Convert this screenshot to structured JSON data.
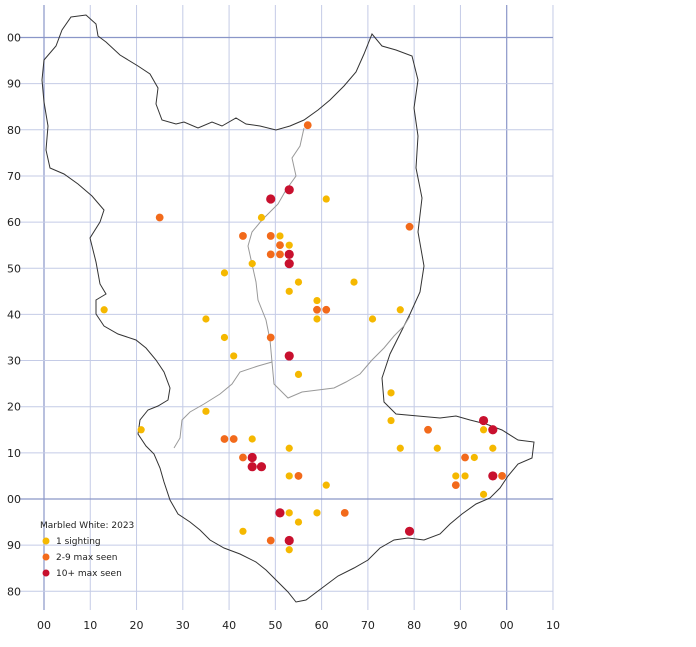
{
  "legend": {
    "title": "Marbled White:  2023",
    "items": [
      {
        "label": "1 sighting",
        "category": "single",
        "color": "#f5b800"
      },
      {
        "label": "2-9 max seen",
        "category": "few",
        "color": "#f26a1b"
      },
      {
        "label": "10+ max seen",
        "category": "many",
        "color": "#c8102e"
      }
    ]
  },
  "grid": {
    "x_labels": [
      "00",
      "10",
      "20",
      "30",
      "40",
      "50",
      "60",
      "70",
      "80",
      "90",
      "00",
      "10"
    ],
    "y_labels": [
      "00",
      "90",
      "80",
      "70",
      "60",
      "50",
      "40",
      "30",
      "20",
      "10",
      "00",
      "90",
      "80"
    ]
  },
  "chart_data": {
    "type": "scatter",
    "x_grid_values": [
      0,
      10,
      20,
      30,
      40,
      50,
      60,
      70,
      80,
      90,
      100,
      110
    ],
    "y_grid_values": [
      100,
      90,
      80,
      70,
      60,
      50,
      40,
      30,
      20,
      10,
      0,
      -10,
      -20
    ],
    "points": [
      {
        "x": 57,
        "y": 81,
        "cat": "few"
      },
      {
        "x": 53,
        "y": 67,
        "cat": "many"
      },
      {
        "x": 49,
        "y": 65,
        "cat": "many"
      },
      {
        "x": 61,
        "y": 65,
        "cat": "single"
      },
      {
        "x": 25,
        "y": 61,
        "cat": "few"
      },
      {
        "x": 47,
        "y": 61,
        "cat": "single"
      },
      {
        "x": 79,
        "y": 59,
        "cat": "few"
      },
      {
        "x": 43,
        "y": 57,
        "cat": "few"
      },
      {
        "x": 49,
        "y": 57,
        "cat": "few"
      },
      {
        "x": 51,
        "y": 57,
        "cat": "single"
      },
      {
        "x": 51,
        "y": 55,
        "cat": "few"
      },
      {
        "x": 53,
        "y": 55,
        "cat": "single"
      },
      {
        "x": 49,
        "y": 53,
        "cat": "few"
      },
      {
        "x": 51,
        "y": 53,
        "cat": "few"
      },
      {
        "x": 53,
        "y": 53,
        "cat": "many"
      },
      {
        "x": 53,
        "y": 51,
        "cat": "many"
      },
      {
        "x": 45,
        "y": 51,
        "cat": "single"
      },
      {
        "x": 39,
        "y": 49,
        "cat": "single"
      },
      {
        "x": 55,
        "y": 47,
        "cat": "single"
      },
      {
        "x": 67,
        "y": 47,
        "cat": "single"
      },
      {
        "x": 53,
        "y": 45,
        "cat": "single"
      },
      {
        "x": 59,
        "y": 43,
        "cat": "single"
      },
      {
        "x": 13,
        "y": 41,
        "cat": "single"
      },
      {
        "x": 59,
        "y": 41,
        "cat": "few"
      },
      {
        "x": 61,
        "y": 41,
        "cat": "few"
      },
      {
        "x": 77,
        "y": 41,
        "cat": "single"
      },
      {
        "x": 35,
        "y": 39,
        "cat": "single"
      },
      {
        "x": 59,
        "y": 39,
        "cat": "single"
      },
      {
        "x": 71,
        "y": 39,
        "cat": "single"
      },
      {
        "x": 39,
        "y": 35,
        "cat": "single"
      },
      {
        "x": 49,
        "y": 35,
        "cat": "few"
      },
      {
        "x": 41,
        "y": 31,
        "cat": "single"
      },
      {
        "x": 53,
        "y": 31,
        "cat": "many"
      },
      {
        "x": 55,
        "y": 27,
        "cat": "single"
      },
      {
        "x": 75,
        "y": 23,
        "cat": "single"
      },
      {
        "x": 35,
        "y": 19,
        "cat": "single"
      },
      {
        "x": 75,
        "y": 17,
        "cat": "single"
      },
      {
        "x": 95,
        "y": 17,
        "cat": "many"
      },
      {
        "x": 21,
        "y": 15,
        "cat": "single"
      },
      {
        "x": 83,
        "y": 15,
        "cat": "few"
      },
      {
        "x": 95,
        "y": 15,
        "cat": "single"
      },
      {
        "x": 97,
        "y": 15,
        "cat": "many"
      },
      {
        "x": 39,
        "y": 13,
        "cat": "few"
      },
      {
        "x": 41,
        "y": 13,
        "cat": "few"
      },
      {
        "x": 45,
        "y": 13,
        "cat": "single"
      },
      {
        "x": 53,
        "y": 11,
        "cat": "single"
      },
      {
        "x": 77,
        "y": 11,
        "cat": "single"
      },
      {
        "x": 85,
        "y": 11,
        "cat": "single"
      },
      {
        "x": 97,
        "y": 11,
        "cat": "single"
      },
      {
        "x": 43,
        "y": 9,
        "cat": "few"
      },
      {
        "x": 45,
        "y": 9,
        "cat": "many"
      },
      {
        "x": 91,
        "y": 9,
        "cat": "few"
      },
      {
        "x": 93,
        "y": 9,
        "cat": "single"
      },
      {
        "x": 45,
        "y": 7,
        "cat": "many"
      },
      {
        "x": 47,
        "y": 7,
        "cat": "many"
      },
      {
        "x": 53,
        "y": 5,
        "cat": "single"
      },
      {
        "x": 55,
        "y": 5,
        "cat": "few"
      },
      {
        "x": 89,
        "y": 5,
        "cat": "single"
      },
      {
        "x": 91,
        "y": 5,
        "cat": "single"
      },
      {
        "x": 97,
        "y": 5,
        "cat": "many"
      },
      {
        "x": 99,
        "y": 5,
        "cat": "few"
      },
      {
        "x": 61,
        "y": 3,
        "cat": "single"
      },
      {
        "x": 89,
        "y": 3,
        "cat": "few"
      },
      {
        "x": 95,
        "y": 1,
        "cat": "single"
      },
      {
        "x": 51,
        "y": -3,
        "cat": "many"
      },
      {
        "x": 53,
        "y": -3,
        "cat": "single"
      },
      {
        "x": 59,
        "y": -3,
        "cat": "single"
      },
      {
        "x": 65,
        "y": -3,
        "cat": "few"
      },
      {
        "x": 55,
        "y": -5,
        "cat": "single"
      },
      {
        "x": 43,
        "y": -7,
        "cat": "single"
      },
      {
        "x": 79,
        "y": -7,
        "cat": "many"
      },
      {
        "x": 49,
        "y": -9,
        "cat": "few"
      },
      {
        "x": 53,
        "y": -9,
        "cat": "many"
      },
      {
        "x": 53,
        "y": -11,
        "cat": "single"
      }
    ]
  }
}
